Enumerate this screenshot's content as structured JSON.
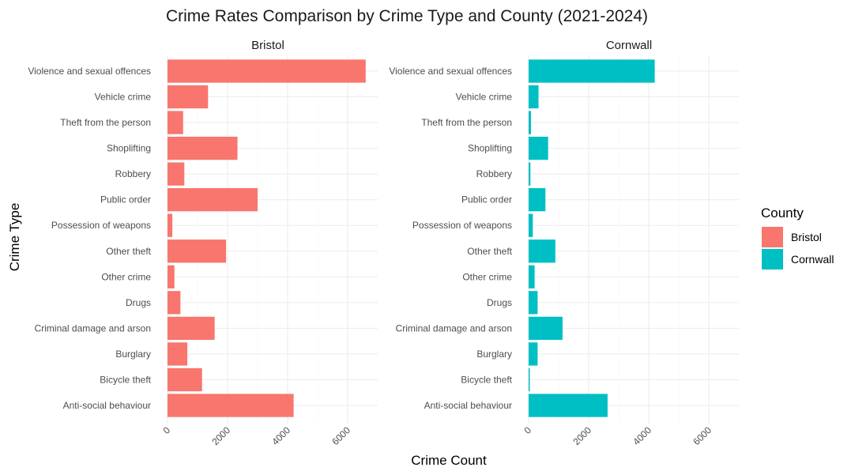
{
  "chart_data": {
    "type": "bar",
    "orientation": "horizontal",
    "title": "Crime Rates Comparison by Crime Type and County (2021-2024)",
    "xlabel": "Crime Count",
    "ylabel": "Crime Type",
    "xlim": [
      0,
      7000
    ],
    "x_ticks": [
      "0",
      "2000",
      "4000",
      "6000"
    ],
    "x_tick_values": [
      0,
      2000,
      4000,
      6000
    ],
    "grid": true,
    "legend": {
      "title": "County",
      "position": "right"
    },
    "categories": [
      "Violence and sexual offences",
      "Vehicle crime",
      "Theft from the person",
      "Shoplifting",
      "Robbery",
      "Public order",
      "Possession of weapons",
      "Other theft",
      "Other crime",
      "Drugs",
      "Criminal damage and arson",
      "Burglary",
      "Bicycle theft",
      "Anti-social behaviour"
    ],
    "series": [
      {
        "name": "Bristol",
        "color": "#F8766D",
        "values": [
          6600,
          1350,
          520,
          2330,
          560,
          3000,
          160,
          1950,
          230,
          430,
          1570,
          660,
          1150,
          4200
        ]
      },
      {
        "name": "Cornwall",
        "color": "#00BFC4",
        "values": [
          4200,
          330,
          80,
          650,
          60,
          560,
          140,
          890,
          200,
          300,
          1130,
          300,
          40,
          2630
        ]
      }
    ]
  }
}
